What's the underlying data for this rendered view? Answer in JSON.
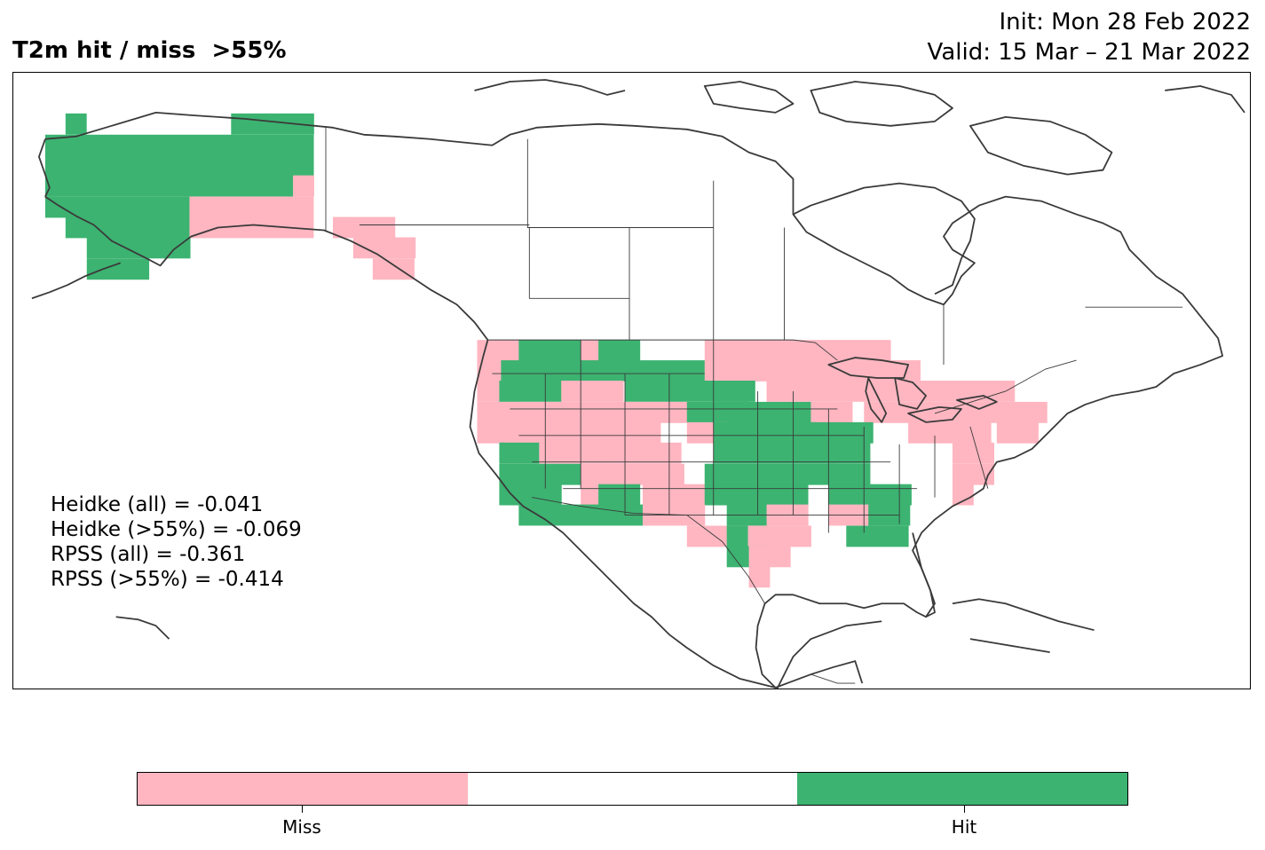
{
  "title": "T2m hit / miss  >55%",
  "init_line": "Init: Mon 28 Feb 2022",
  "valid_line": "Valid: 15 Mar – 21 Mar 2022",
  "colors": {
    "miss": "#ffb6c1",
    "neutral": "#ffffff",
    "hit": "#3cb371",
    "coast": "#3a3a3a",
    "border": "#000000"
  },
  "stats": [
    "Heidke (all) = -0.041",
    "Heidke (>55%) = -0.069",
    "RPSS (all) = -0.361",
    "RPSS (>55%) = -0.414"
  ],
  "colorbar": {
    "labels": [
      "Miss",
      "Hit"
    ]
  }
}
